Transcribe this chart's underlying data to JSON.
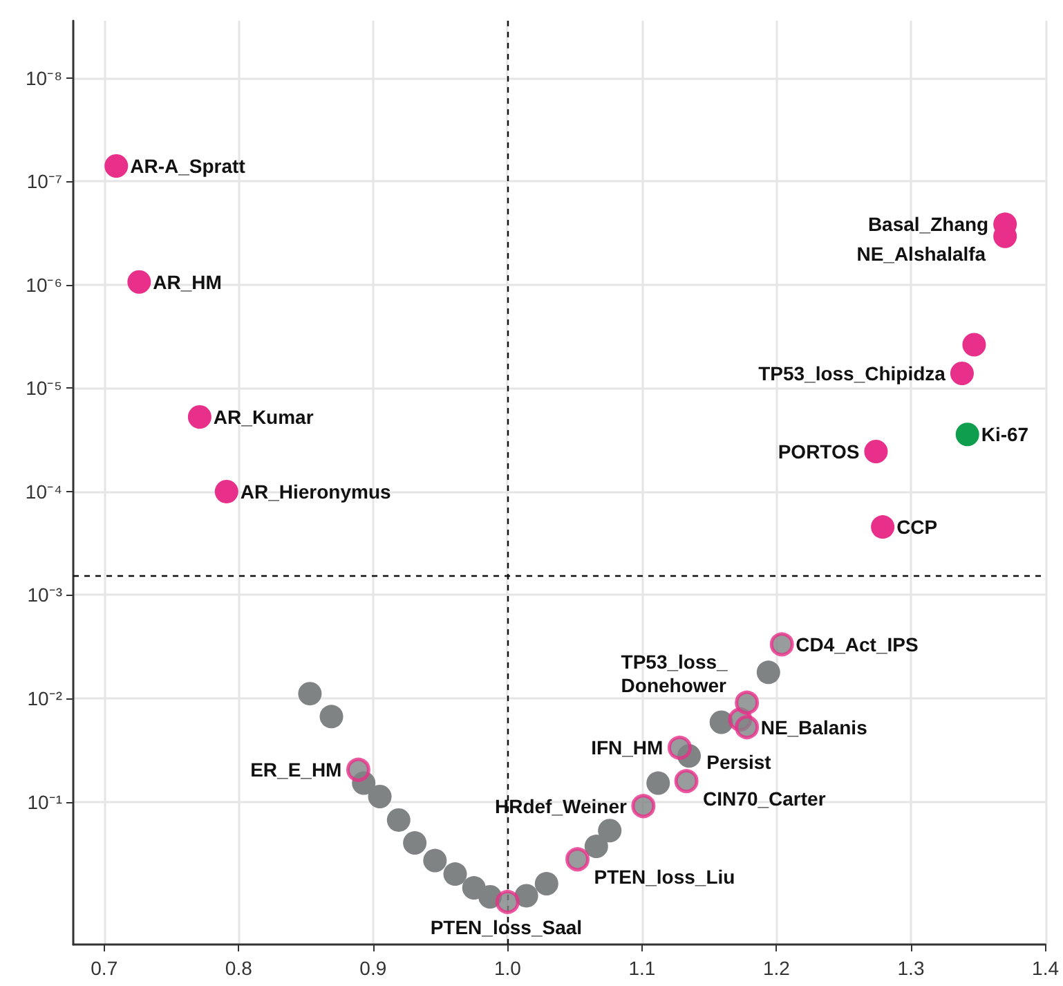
{
  "chart_data": {
    "type": "scatter",
    "marker": "circle",
    "grid": true,
    "log": "y",
    "xlim": [
      0.677,
      1.4
    ],
    "xticks": [
      0.7,
      0.8,
      0.9,
      {
        "value": 1,
        "label": "1.0"
      },
      1.1,
      1.2,
      1.3,
      1.4
    ],
    "ylim": [
      2.4,
      2.8e-09
    ],
    "yticks": [
      {
        "value": 1e-08,
        "label": "10⁻⁸"
      },
      {
        "value": 1e-07,
        "label": "10⁻⁷"
      },
      {
        "value": 1e-06,
        "label": "10⁻⁶"
      },
      {
        "value": 1e-05,
        "label": "10⁻⁵"
      },
      {
        "value": 0.0001,
        "label": "10⁻⁴"
      },
      {
        "value": 0.001,
        "label": "10⁻³"
      },
      {
        "value": 0.01,
        "label": "10⁻²"
      },
      {
        "value": 0.1,
        "label": "10⁻¹"
      }
    ],
    "ref_lines": [
      {
        "axis": "x",
        "value": 1,
        "line_style": "dashed"
      },
      {
        "axis": "y",
        "value": 0.00066,
        "line_style": "dashed"
      }
    ],
    "series": [
      {
        "color": "#808384",
        "x": [
          0.853,
          0.869,
          0.893,
          0.905,
          0.919,
          0.931,
          0.946,
          0.961,
          0.975,
          0.987,
          1.014,
          1.029,
          1.066,
          1.076,
          1.112,
          1.135,
          1.159,
          1.178,
          1.194
        ],
        "values": [
          0.009,
          0.015,
          0.066,
          0.089,
          0.15,
          0.25,
          0.37,
          0.5,
          0.68,
          0.83,
          0.81,
          0.62,
          0.27,
          0.19,
          0.066,
          0.036,
          0.017,
          null,
          0.0056
        ]
      },
      {
        "color": "#e8308a",
        "x": [
          0.889,
          1.0,
          1.052,
          1.101,
          1.133,
          1.128,
          1.173,
          1.178,
          1.178,
          1.204
        ],
        "values": [
          0.049,
          0.93,
          0.36,
          0.11,
          0.063,
          0.03,
          0.016,
          0.019,
          0.011,
          0.003
        ]
      },
      {
        "color": "#e8308a",
        "x": [
          0.709,
          0.726,
          0.771,
          0.791,
          1.37,
          1.37,
          1.347,
          1.338,
          1.274,
          1.279
        ],
        "values": [
          7.1e-08,
          9.4e-07,
          1.9e-05,
          0.0001,
          2.6e-07,
          3.4e-07,
          3.8e-06,
          7.2e-06,
          4.1e-05,
          0.00022
        ]
      },
      {
        "color": "#0e9e4e",
        "x": [
          1.342
        ],
        "values": [
          2.8e-05
        ]
      }
    ],
    "annotations": [
      {
        "text": "AR-A_Spratt",
        "x": 0.709,
        "y": 7.1e-08
      },
      {
        "text": "AR_HM",
        "x": 0.726,
        "y": 9.4e-07
      },
      {
        "text": "AR_Kumar",
        "x": 0.771,
        "y": 1.9e-05
      },
      {
        "text": "AR_Hieronymus",
        "x": 0.791,
        "y": 0.0001
      },
      {
        "text": "Basal_Zhang",
        "x": 1.37,
        "y": 2.6e-07
      },
      {
        "text": "NE_Alshalalfa",
        "x": 1.37,
        "y": 3.4e-07
      },
      {
        "text": "TP53_loss_Chipidza",
        "x": 1.338,
        "y": 7.2e-06
      },
      {
        "text": "PORTOS",
        "x": 1.274,
        "y": 4.1e-05
      },
      {
        "text": "Ki-67",
        "x": 1.342,
        "y": 2.8e-05
      },
      {
        "text": "CCP",
        "x": 1.279,
        "y": 0.00022
      },
      {
        "text": "CD4_Act_IPS",
        "x": 1.204,
        "y": 0.003
      },
      {
        "text": "Persist",
        "x": 1.173,
        "y": 0.016
      },
      {
        "text": "TP53_loss_ Donehower",
        "x": 1.178,
        "y": 0.011
      },
      {
        "text": "IFN_HM",
        "x": 1.128,
        "y": 0.03
      },
      {
        "text": "NE_Balanis",
        "x": 1.178,
        "y": 0.019
      },
      {
        "text": "ER_E_HM",
        "x": 0.889,
        "y": 0.049
      },
      {
        "text": "CIN70_Carter",
        "x": 1.133,
        "y": 0.063
      },
      {
        "text": "HRdef_Weiner",
        "x": 1.101,
        "y": 0.11
      },
      {
        "text": "PTEN_loss_Liu",
        "x": 1.052,
        "y": 0.36
      },
      {
        "text": "PTEN_loss_Saal",
        "x": 1.0,
        "y": 0.93
      }
    ]
  }
}
